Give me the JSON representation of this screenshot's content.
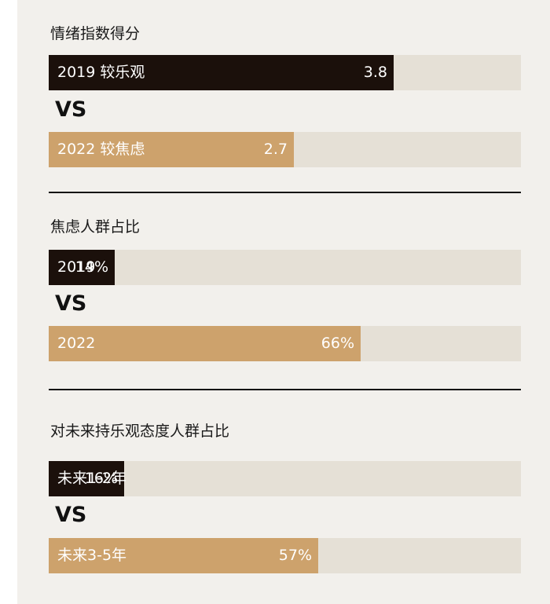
{
  "colors": {
    "panel_bg": "#f2f0ec",
    "track": "#e5e0d6",
    "dark": "#1b100b",
    "tan": "#cda26c",
    "text_on_bar": "#ffffff"
  },
  "vs_label": "VS",
  "chart_data": [
    {
      "type": "bar",
      "title": "情绪指数得分",
      "bars": [
        {
          "label": "2019  较乐观",
          "value": 3.8,
          "display": "3.8",
          "color": "#1b100b"
        },
        {
          "label": "2022  较焦虑",
          "value": 2.7,
          "display": "2.7",
          "color": "#cda26c"
        }
      ]
    },
    {
      "type": "bar",
      "title": "焦虑人群占比",
      "bars": [
        {
          "label": "2019",
          "value": 14,
          "display": "14%",
          "color": "#1b100b"
        },
        {
          "label": "2022",
          "value": 66,
          "display": "66%",
          "color": "#cda26c"
        }
      ]
    },
    {
      "type": "bar",
      "title": "对未来持乐观态度人群占比",
      "bars": [
        {
          "label": "未来1-2年",
          "value": 16,
          "display": "16%",
          "color": "#1b100b"
        },
        {
          "label": "未来3-5年",
          "value": 57,
          "display": "57%",
          "color": "#cda26c"
        }
      ]
    }
  ]
}
